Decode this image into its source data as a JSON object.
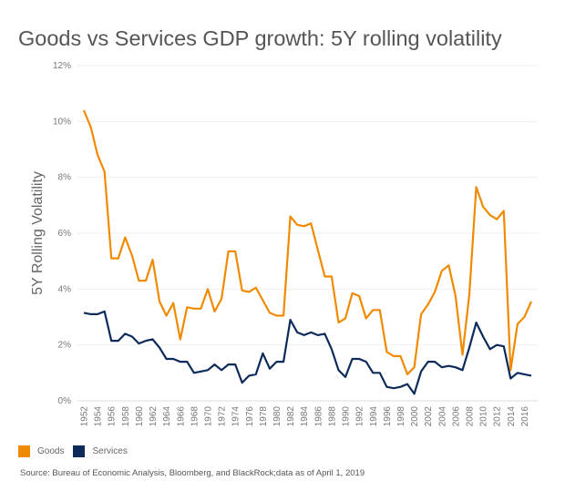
{
  "chart_data": {
    "type": "line",
    "title": "Goods vs Services GDP growth: 5Y rolling volatility",
    "xlabel": "",
    "ylabel": "5Y Rolling Volatility",
    "ylim": [
      0,
      12
    ],
    "yticks": [
      "0%",
      "2%",
      "4%",
      "6%",
      "8%",
      "10%",
      "12%"
    ],
    "ytick_values": [
      0,
      2,
      4,
      6,
      8,
      10,
      12
    ],
    "xticks": [
      "1952",
      "1954",
      "1956",
      "1958",
      "1960",
      "1962",
      "1964",
      "1966",
      "1968",
      "1970",
      "1972",
      "1974",
      "1976",
      "1978",
      "1980",
      "1982",
      "1984",
      "1986",
      "1988",
      "1990",
      "1992",
      "1994",
      "1996",
      "1998",
      "2000",
      "2002",
      "2004",
      "2006",
      "2008",
      "2010",
      "2012",
      "2014",
      "2016"
    ],
    "grid": true,
    "legend_position": "bottom-left",
    "x_start": 1952,
    "x_end": 2017,
    "series": [
      {
        "name": "Goods",
        "color": "#F08A00",
        "values": [
          10.4,
          9.8,
          8.8,
          8.2,
          5.1,
          5.1,
          5.85,
          5.2,
          4.3,
          4.3,
          5.05,
          3.55,
          3.05,
          3.5,
          2.2,
          3.35,
          3.3,
          3.3,
          4.0,
          3.2,
          3.65,
          5.35,
          5.35,
          3.95,
          3.9,
          4.05,
          3.6,
          3.15,
          3.05,
          3.05,
          6.6,
          6.3,
          6.25,
          6.35,
          5.4,
          4.45,
          4.45,
          2.8,
          2.95,
          3.85,
          3.75,
          2.95,
          3.25,
          3.25,
          1.75,
          1.6,
          1.6,
          0.95,
          1.2,
          3.1,
          3.45,
          3.9,
          4.65,
          4.85,
          3.75,
          1.65,
          3.8,
          7.65,
          6.95,
          6.65,
          6.5,
          6.8,
          1.1,
          2.75,
          3.0,
          3.55
        ]
      },
      {
        "name": "Services",
        "color": "#0D2B5A",
        "values": [
          3.15,
          3.1,
          3.1,
          3.2,
          2.15,
          2.15,
          2.4,
          2.3,
          2.05,
          2.15,
          2.2,
          1.9,
          1.5,
          1.5,
          1.4,
          1.4,
          1.0,
          1.05,
          1.1,
          1.3,
          1.1,
          1.3,
          1.3,
          0.65,
          0.9,
          0.95,
          1.7,
          1.15,
          1.4,
          1.4,
          2.9,
          2.45,
          2.35,
          2.45,
          2.35,
          2.4,
          1.85,
          1.1,
          0.85,
          1.5,
          1.5,
          1.4,
          1.0,
          1.0,
          0.5,
          0.45,
          0.5,
          0.6,
          0.25,
          1.05,
          1.4,
          1.4,
          1.2,
          1.25,
          1.2,
          1.1,
          1.9,
          2.8,
          2.3,
          1.85,
          2.0,
          1.95,
          0.8,
          1.0,
          0.95,
          0.9
        ]
      }
    ]
  },
  "source": "Source: Bureau of Economic Analysis, Bloomberg, and BlackRock;data as of April 1, 2019"
}
